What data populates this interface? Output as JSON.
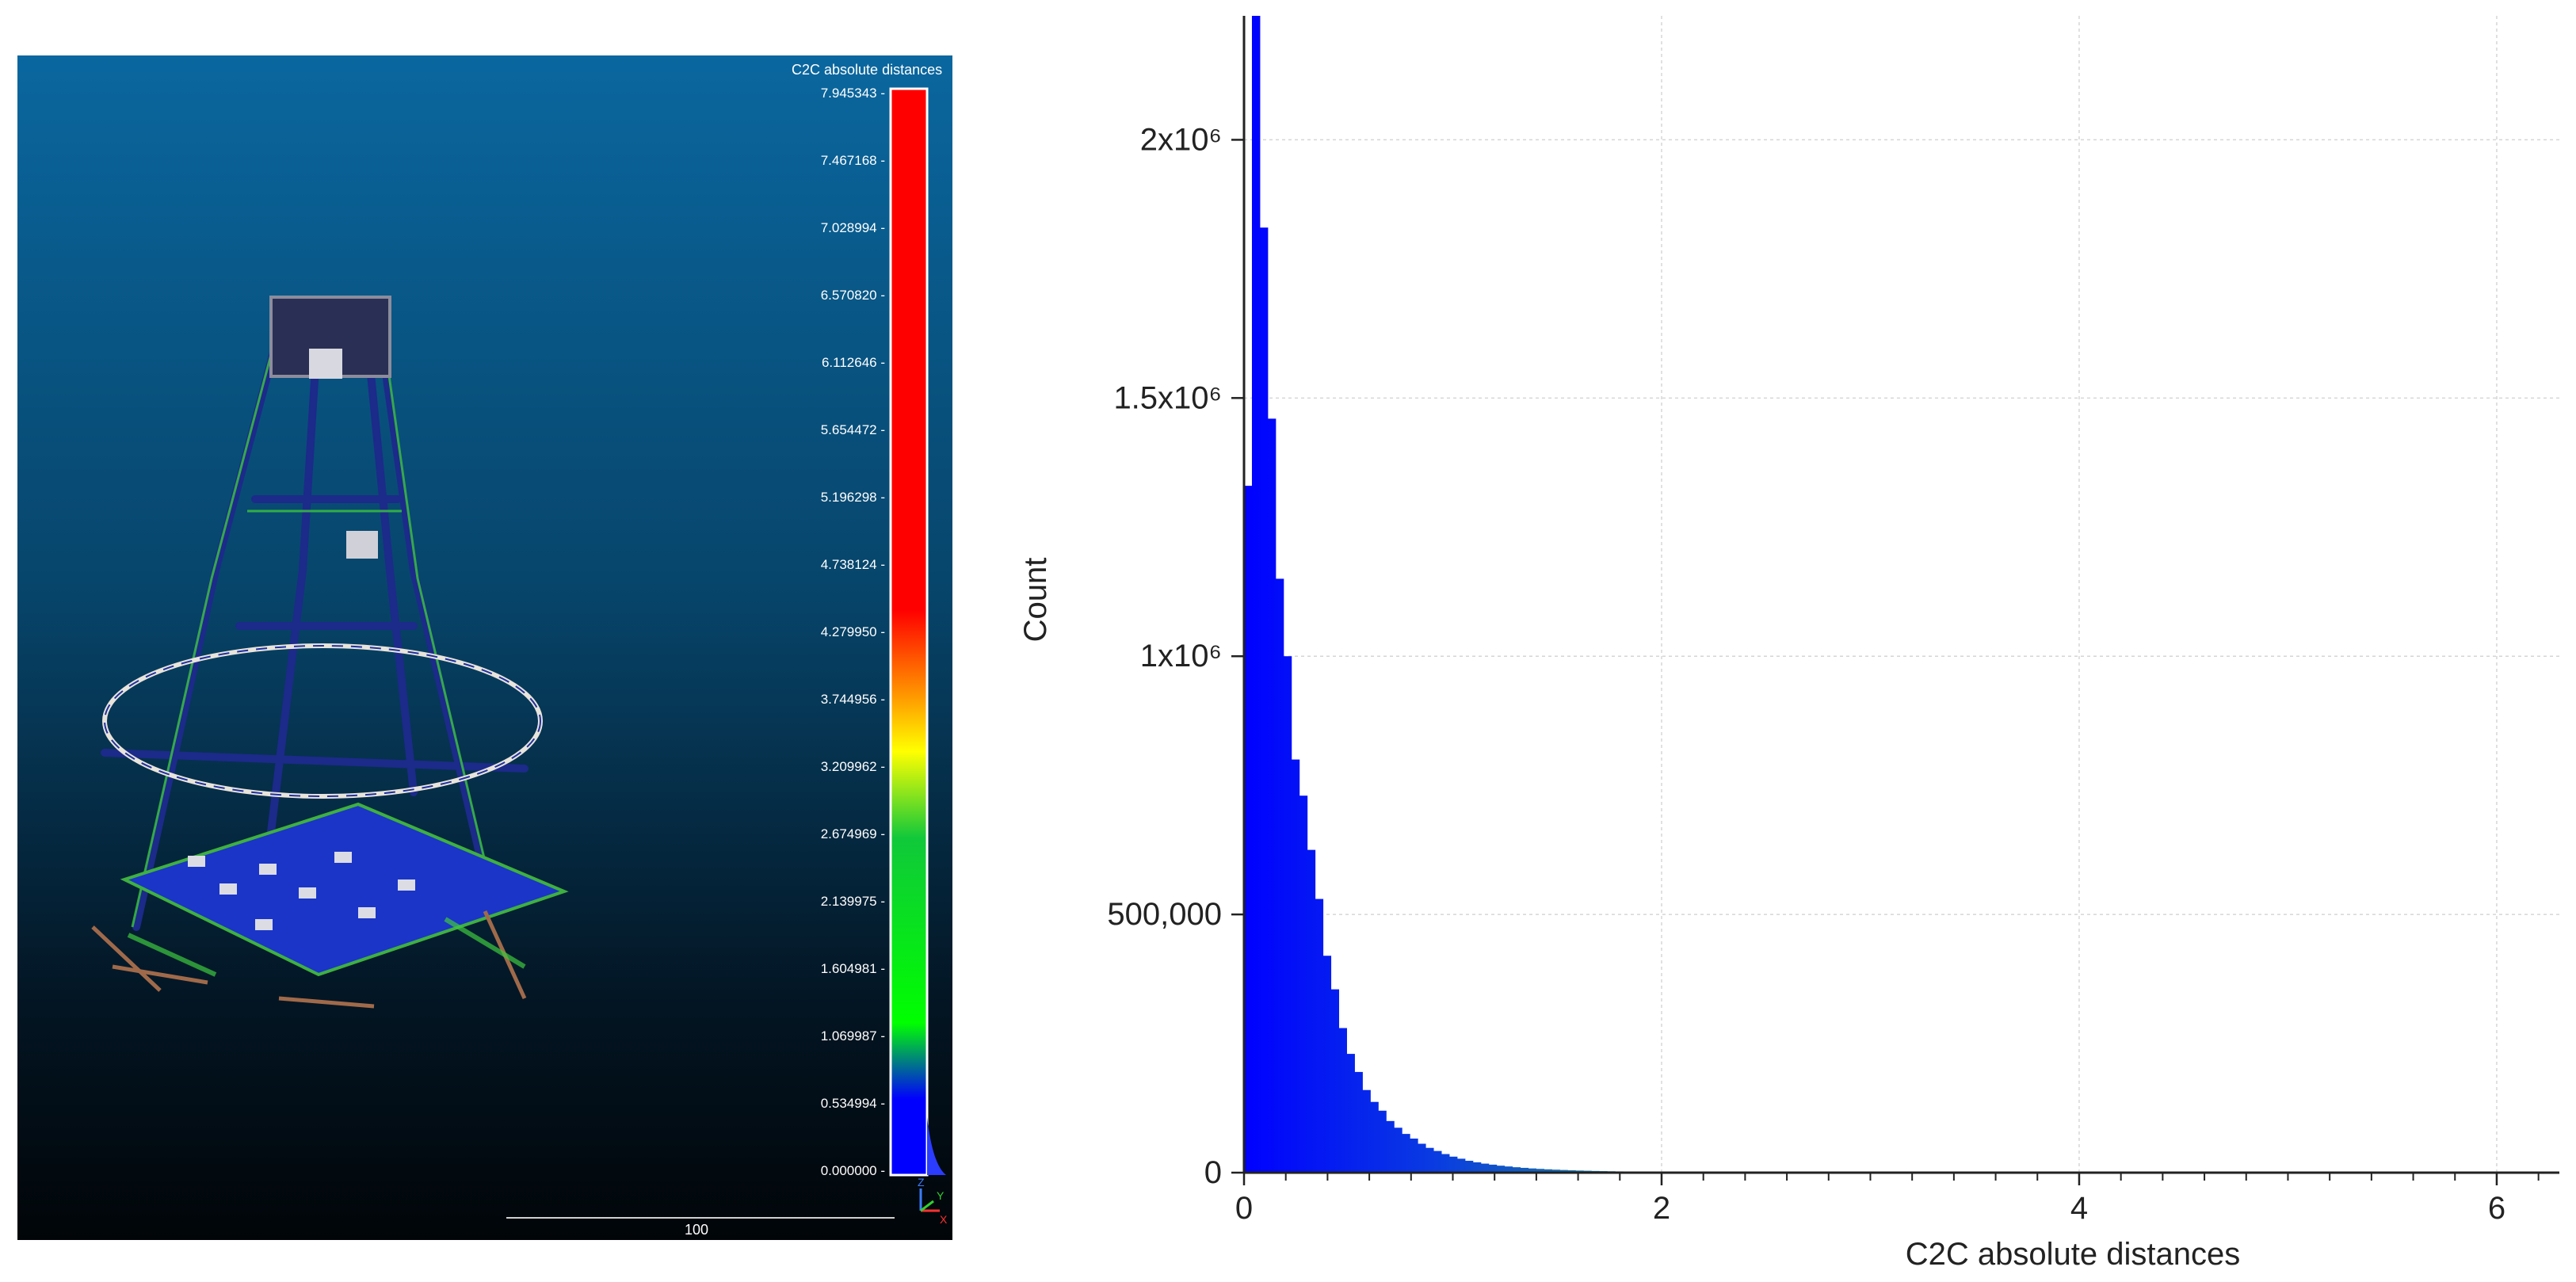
{
  "viewer": {
    "colorbar_title": "C2C absolute distances",
    "colorbar_ticks": [
      "7.945343",
      "7.467168",
      "7.028994",
      "6.570820",
      "6.112646",
      "5.654472",
      "5.196298",
      "4.738124",
      "4.279950",
      "3.744956",
      "3.209962",
      "2.674969",
      "2.139975",
      "1.604981",
      "1.069987",
      "0.534994",
      "0.000000"
    ],
    "scale_label": "100",
    "axes_labels": {
      "z": "Z",
      "x": "X",
      "y": "Y"
    }
  },
  "chart_data": {
    "type": "bar",
    "xlabel": "C2C absolute distances",
    "ylabel": "Count",
    "xlim": [
      0,
      6.3
    ],
    "ylim": [
      0,
      2240000
    ],
    "xticks": [
      {
        "v": 0,
        "t": "0"
      },
      {
        "v": 2,
        "t": "2"
      },
      {
        "v": 4,
        "t": "4"
      },
      {
        "v": 6,
        "t": "6"
      }
    ],
    "yticks": [
      {
        "v": 0,
        "t": "0"
      },
      {
        "v": 500000,
        "t": "500,000"
      },
      {
        "v": 1000000,
        "t": "1x10⁶"
      },
      {
        "v": 1500000,
        "t": "1.5x10⁶"
      },
      {
        "v": 2000000,
        "t": "2x10⁶"
      }
    ],
    "grid": true,
    "bin_start": 0,
    "bin_width": 0.0378,
    "values": [
      1330000,
      2240000,
      1830000,
      1460000,
      1150000,
      1000000,
      800000,
      730000,
      625000,
      530000,
      420000,
      355000,
      280000,
      230000,
      195000,
      160000,
      137000,
      120000,
      100000,
      87000,
      75000,
      66000,
      56000,
      48000,
      42000,
      36000,
      31000,
      27000,
      23000,
      20000,
      17500,
      15500,
      13500,
      12000,
      10500,
      9300,
      8200,
      7300,
      6500,
      5800,
      5200,
      4600,
      4100,
      3700,
      3300,
      3000,
      2700,
      2400,
      2200,
      2000,
      1800,
      1650,
      1500,
      1350,
      1200,
      1100,
      1000,
      900,
      820,
      750,
      680,
      620,
      560,
      510,
      460,
      420,
      380,
      340,
      300,
      270,
      240,
      210,
      190,
      170,
      150,
      130,
      110,
      95,
      80,
      70
    ]
  }
}
